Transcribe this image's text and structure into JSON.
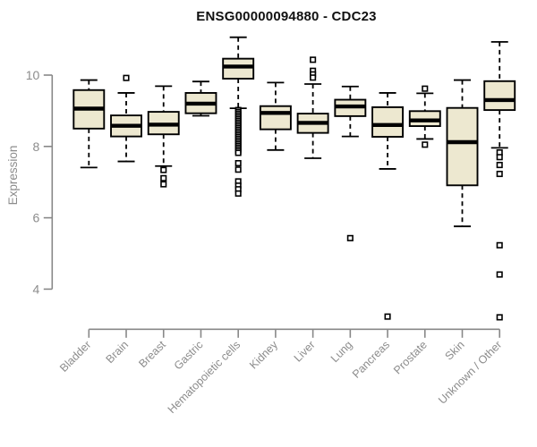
{
  "chart_data": {
    "type": "boxplot",
    "title": "ENSG00000094880 - CDC23",
    "ylabel": "Expression",
    "xlabel": "",
    "yticks": [
      10,
      8,
      6,
      4
    ],
    "ylim": [
      3.0,
      11.2
    ],
    "grid": false,
    "legend": "none",
    "colors": {
      "box_fill": "#EDE8D0",
      "box_stroke": "#000000",
      "axis_line": "#888888",
      "tick_label": "#8c8c8c",
      "title_text": "#111111",
      "background": "#ffffff"
    },
    "categories": [
      "Bladder",
      "Brain",
      "Breast",
      "Gastric",
      "Hematopoietic cells",
      "Kidney",
      "Liver",
      "Lung",
      "Pancreas",
      "Prostate",
      "Skin",
      "Unknown / Other"
    ],
    "series": [
      {
        "category": "Bladder",
        "whisker_high": 9.86,
        "q3": 9.58,
        "median": 9.06,
        "q1": 8.5,
        "whisker_low": 7.41,
        "outliers": []
      },
      {
        "category": "Brain",
        "whisker_high": 9.5,
        "q3": 8.87,
        "median": 8.58,
        "q1": 8.28,
        "whisker_low": 7.58,
        "outliers": [
          9.92
        ]
      },
      {
        "category": "Breast",
        "whisker_high": 9.69,
        "q3": 8.97,
        "median": 8.61,
        "q1": 8.34,
        "whisker_low": 7.45,
        "outliers": [
          7.34,
          7.11,
          6.94
        ]
      },
      {
        "category": "Gastric",
        "whisker_high": 9.82,
        "q3": 9.5,
        "median": 9.2,
        "q1": 8.93,
        "whisker_low": 8.86,
        "outliers": []
      },
      {
        "category": "Hematopoietic cells",
        "whisker_high": 11.06,
        "q3": 10.46,
        "median": 10.24,
        "q1": 9.9,
        "whisker_low": 9.07,
        "outliers": [
          9.02,
          8.97,
          8.92,
          8.87,
          8.82,
          8.77,
          8.72,
          8.67,
          8.62,
          8.57,
          8.52,
          8.47,
          8.42,
          8.37,
          8.32,
          8.27,
          8.22,
          8.17,
          8.12,
          8.07,
          8.02,
          7.97,
          7.92,
          7.87,
          7.82,
          7.53,
          7.35,
          7.02,
          6.9,
          6.8,
          6.68
        ]
      },
      {
        "category": "Kidney",
        "whisker_high": 9.79,
        "q3": 9.13,
        "median": 8.94,
        "q1": 8.48,
        "whisker_low": 7.9,
        "outliers": []
      },
      {
        "category": "Liver",
        "whisker_high": 9.75,
        "q3": 8.92,
        "median": 8.66,
        "q1": 8.38,
        "whisker_low": 7.67,
        "outliers": [
          10.43,
          10.12,
          10.02,
          9.93
        ]
      },
      {
        "category": "Lung",
        "whisker_high": 9.68,
        "q3": 9.31,
        "median": 9.12,
        "q1": 8.85,
        "whisker_low": 8.28,
        "outliers": [
          5.43
        ]
      },
      {
        "category": "Pancreas",
        "whisker_high": 9.5,
        "q3": 9.1,
        "median": 8.6,
        "q1": 8.27,
        "whisker_low": 7.37,
        "outliers": [
          3.23
        ]
      },
      {
        "category": "Prostate",
        "whisker_high": 9.49,
        "q3": 8.99,
        "median": 8.73,
        "q1": 8.57,
        "whisker_low": 8.21,
        "outliers": [
          9.62,
          8.05
        ]
      },
      {
        "category": "Skin",
        "whisker_high": 9.86,
        "q3": 9.08,
        "median": 8.12,
        "q1": 6.91,
        "whisker_low": 5.76,
        "outliers": []
      },
      {
        "category": "Unknown / Other",
        "whisker_high": 10.93,
        "q3": 9.83,
        "median": 9.3,
        "q1": 9.02,
        "whisker_low": 7.96,
        "outliers": [
          7.83,
          7.7,
          7.48,
          7.23,
          5.23,
          4.41,
          3.21
        ]
      }
    ]
  }
}
